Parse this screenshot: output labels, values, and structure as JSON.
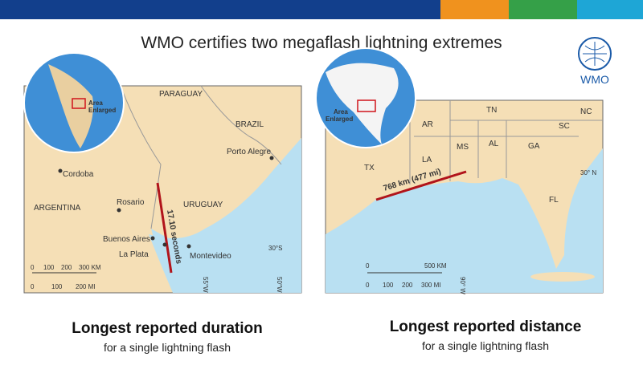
{
  "title": "WMO certifies two megaflash lightning extremes",
  "logo": "WMO",
  "maps": [
    {
      "inset_label": [
        "Area",
        "Enlarged"
      ],
      "labels": [
        "PARAGUAY",
        "BRAZIL",
        "Porto Alegre",
        "Cordoba",
        "ARGENTINA",
        "Rosario",
        "URUGUAY",
        "Buenos Aires",
        "La Plata",
        "Montevideo",
        "30°S",
        "55°W",
        "50°W"
      ],
      "flash_label": "17.10 seconds",
      "scale_km": [
        "0",
        "100",
        "200",
        "300 KM"
      ],
      "scale_mi": [
        "0",
        "100",
        "200 MI"
      ]
    },
    {
      "inset_label": [
        "Area",
        "Enlarged"
      ],
      "labels": [
        "TN",
        "NC",
        "AR",
        "SC",
        "MS",
        "AL",
        "GA",
        "LA",
        "TX",
        "30° N",
        "FL",
        "90° W"
      ],
      "flash_label": "768 km (477 mi)",
      "scale_km": [
        "0",
        "500 KM"
      ],
      "scale_mi": [
        "0",
        "100",
        "200",
        "300 MI"
      ]
    }
  ],
  "captions": [
    {
      "heading": "Longest reported duration",
      "sub": "for a single lightning flash"
    },
    {
      "heading": "Longest reported distance",
      "sub": "for a single lightning flash"
    }
  ]
}
